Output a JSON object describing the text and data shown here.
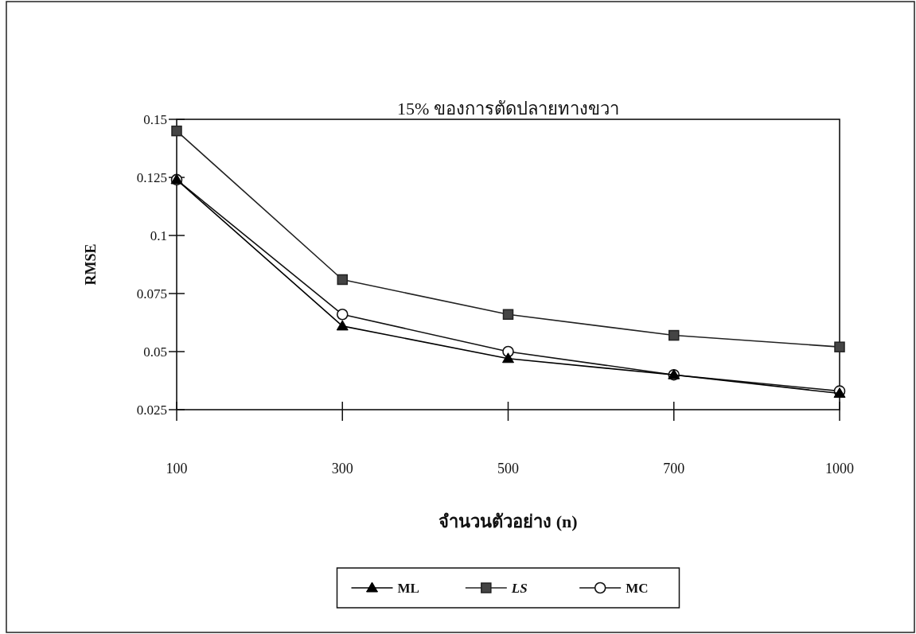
{
  "chart_data": {
    "type": "line",
    "title": "15% ของการตัดปลายทางขวา",
    "xlabel": "จำนวนตัวอย่าง (n)",
    "ylabel": "RMSE",
    "categories": [
      "100",
      "300",
      "500",
      "700",
      "1000"
    ],
    "ylim": [
      0.025,
      0.15
    ],
    "yticks": [
      0.025,
      0.05,
      0.075,
      0.1,
      0.125,
      0.15
    ],
    "grid": false,
    "legend": "bottom",
    "line_style": "solid",
    "series": [
      {
        "name": "ML",
        "color": "#000000",
        "marker": "triangle",
        "values": [
          0.124,
          0.061,
          0.047,
          0.04,
          0.032
        ]
      },
      {
        "name": "LS",
        "color": "#222222",
        "marker": "square",
        "values": [
          0.145,
          0.081,
          0.066,
          0.057,
          0.052
        ]
      },
      {
        "name": "MC",
        "color": "#111111",
        "marker": "circle",
        "values": [
          0.124,
          0.066,
          0.05,
          0.04,
          0.033
        ]
      }
    ]
  }
}
